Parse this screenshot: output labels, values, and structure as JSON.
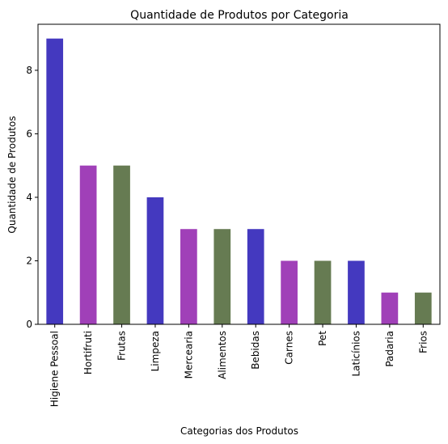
{
  "chart_data": {
    "type": "bar",
    "title": "Quantidade de Produtos por Categoria",
    "xlabel": "Categorias dos Produtos",
    "ylabel": "Quantidade de Produtos",
    "categories": [
      "Higiene Pessoal",
      "Hortifruti",
      "Frutas",
      "Limpeza",
      "Mercearia",
      "Alimentos",
      "Bebidas",
      "Carnes",
      "Pet",
      "Laticínios",
      "Padaria",
      "Frios"
    ],
    "values": [
      9,
      5,
      5,
      4,
      3,
      3,
      3,
      2,
      2,
      2,
      1,
      1
    ],
    "colors": [
      "#4439bf",
      "#a040b8",
      "#667b52",
      "#4439bf",
      "#a040b8",
      "#667b52",
      "#4439bf",
      "#a040b8",
      "#667b52",
      "#4439bf",
      "#a040b8",
      "#667b52"
    ],
    "ylim": [
      0,
      9.45
    ],
    "yticks": [
      "0",
      "2",
      "4",
      "6",
      "8"
    ],
    "grid": false,
    "legend": "none"
  }
}
